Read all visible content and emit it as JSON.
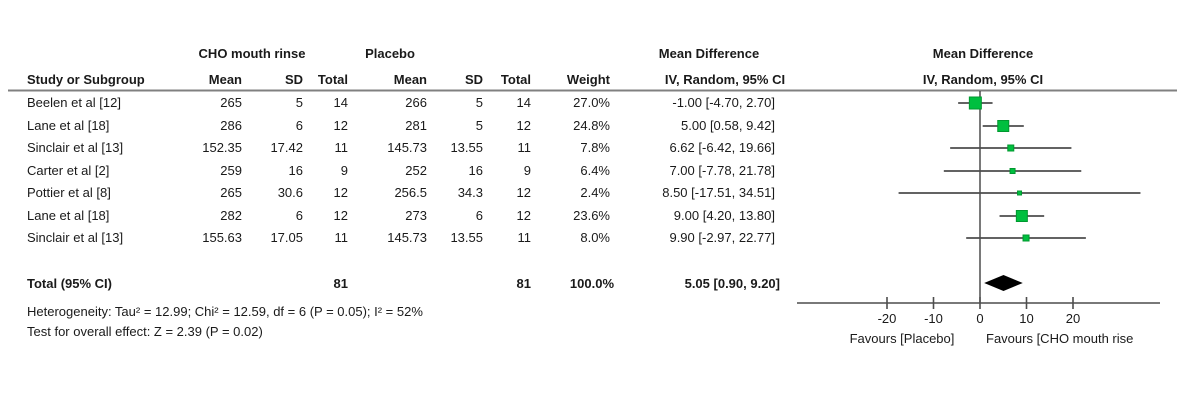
{
  "chart_data": {
    "type": "forest",
    "effect_measure": "Mean Difference",
    "method": "IV, Random, 95% CI",
    "columns": {
      "study": "Study or Subgroup",
      "group1": "CHO mouth rinse",
      "group2": "Placebo",
      "mean": "Mean",
      "sd": "SD",
      "total": "Total",
      "weight": "Weight",
      "md_header": "Mean Difference",
      "md_subheader": "IV, Random, 95% CI"
    },
    "studies": [
      {
        "label": "Beelen et al [12]",
        "g1_mean": "265",
        "g1_sd": "5",
        "g1_total": "14",
        "g2_mean": "266",
        "g2_sd": "5",
        "g2_total": "14",
        "weight": "27.0%",
        "weight_pct": 27.0,
        "ci_text": "-1.00 [-4.70, 2.70]",
        "md": -1.0,
        "ci_low": -4.7,
        "ci_high": 2.7
      },
      {
        "label": "Lane et al [18]",
        "g1_mean": "286",
        "g1_sd": "6",
        "g1_total": "12",
        "g2_mean": "281",
        "g2_sd": "5",
        "g2_total": "12",
        "weight": "24.8%",
        "weight_pct": 24.8,
        "ci_text": "5.00 [0.58, 9.42]",
        "md": 5.0,
        "ci_low": 0.58,
        "ci_high": 9.42
      },
      {
        "label": "Sinclair et al [13]",
        "g1_mean": "152.35",
        "g1_sd": "17.42",
        "g1_total": "11",
        "g2_mean": "145.73",
        "g2_sd": "13.55",
        "g2_total": "11",
        "weight": "7.8%",
        "weight_pct": 7.8,
        "ci_text": "6.62 [-6.42, 19.66]",
        "md": 6.62,
        "ci_low": -6.42,
        "ci_high": 19.66
      },
      {
        "label": "Carter et al [2]",
        "g1_mean": "259",
        "g1_sd": "16",
        "g1_total": "9",
        "g2_mean": "252",
        "g2_sd": "16",
        "g2_total": "9",
        "weight": "6.4%",
        "weight_pct": 6.4,
        "ci_text": "7.00 [-7.78, 21.78]",
        "md": 7.0,
        "ci_low": -7.78,
        "ci_high": 21.78
      },
      {
        "label": "Pottier et al [8]",
        "g1_mean": "265",
        "g1_sd": "30.6",
        "g1_total": "12",
        "g2_mean": "256.5",
        "g2_sd": "34.3",
        "g2_total": "12",
        "weight": "2.4%",
        "weight_pct": 2.4,
        "ci_text": "8.50 [-17.51, 34.51]",
        "md": 8.5,
        "ci_low": -17.51,
        "ci_high": 34.51
      },
      {
        "label": "Lane et al [18]",
        "g1_mean": "282",
        "g1_sd": "6",
        "g1_total": "12",
        "g2_mean": "273",
        "g2_sd": "6",
        "g2_total": "12",
        "weight": "23.6%",
        "weight_pct": 23.6,
        "ci_text": "9.00 [4.20, 13.80]",
        "md": 9.0,
        "ci_low": 4.2,
        "ci_high": 13.8
      },
      {
        "label": "Sinclair et al [13]",
        "g1_mean": "155.63",
        "g1_sd": "17.05",
        "g1_total": "11",
        "g2_mean": "145.73",
        "g2_sd": "13.55",
        "g2_total": "11",
        "weight": "8.0%",
        "weight_pct": 8.0,
        "ci_text": "9.90 [-2.97, 22.77]",
        "md": 9.9,
        "ci_low": -2.97,
        "ci_high": 22.77
      }
    ],
    "total": {
      "label": "Total (95% CI)",
      "g1_total": "81",
      "g2_total": "81",
      "weight": "100.0%",
      "ci_text": "5.05 [0.90, 9.20]",
      "md": 5.05,
      "ci_low": 0.9,
      "ci_high": 9.2
    },
    "footnotes": [
      "Heterogeneity: Tau² = 12.99; Chi² = 12.59, df = 6 (P = 0.05); I² = 52%",
      "Test for overall effect: Z = 2.39 (P = 0.02)"
    ],
    "axis": {
      "ticks": [
        -20,
        -10,
        0,
        10,
        20
      ],
      "xlim": [
        -40,
        40
      ],
      "favours_left": "Favours [Placebo]",
      "favours_right": "Favours [CHO mouth rise"
    },
    "colors": {
      "marker": "#00BF3F",
      "marker_edge": "#00982F",
      "diamond": "#000000",
      "ci_line": "#4d4d4d",
      "rule": "#808080",
      "text": "#1a1a1a"
    }
  }
}
